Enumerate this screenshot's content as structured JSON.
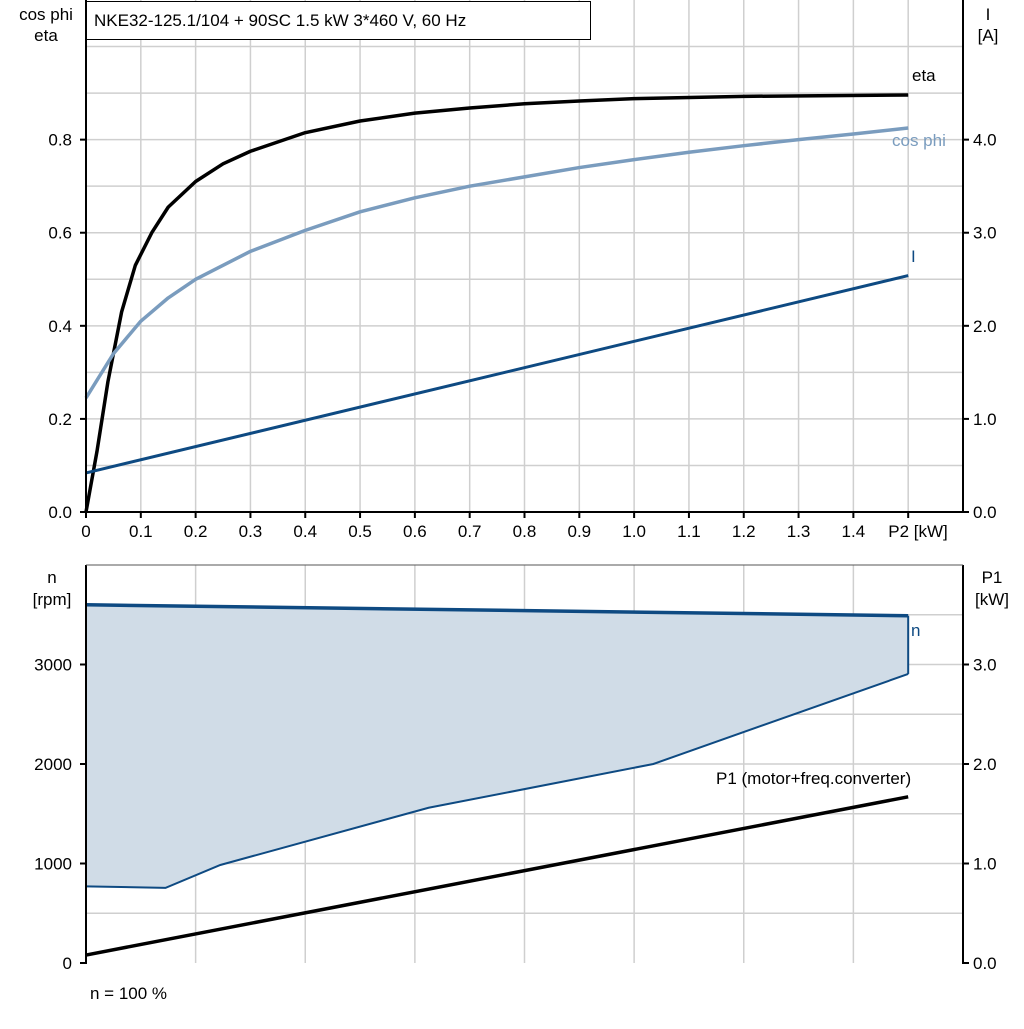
{
  "title": "NKE32-125.1/104 + 90SC   1.5 kW   3*460 V, 60 Hz",
  "footer": "n = 100 %",
  "colors": {
    "eta": "#000000",
    "cos_phi": "#7a9cbe",
    "I": "#0e4a82",
    "n": "#0e4a82",
    "n_fill": "#d0dce7",
    "P1": "#000000",
    "grid": "#cfcfcf"
  },
  "chart_data": [
    {
      "type": "line",
      "xlabel": "P2 [kW]",
      "x_ticks": [
        "0",
        "0.1",
        "0.2",
        "0.3",
        "0.4",
        "0.5",
        "0.6",
        "0.7",
        "0.8",
        "0.9",
        "1.0",
        "1.1",
        "1.2",
        "1.3",
        "1.4"
      ],
      "xlim": [
        0,
        1.6
      ],
      "ylabel_left": [
        "cos phi",
        "eta"
      ],
      "ylim_left": [
        0,
        1.1
      ],
      "y_ticks_left": [
        "0.0",
        "0.2",
        "0.4",
        "0.6",
        "0.8"
      ],
      "ylabel_right": [
        "I",
        "[A]"
      ],
      "ylim_right": [
        0,
        5.5
      ],
      "y_ticks_right": [
        "0.0",
        "1.0",
        "2.0",
        "3.0",
        "4.0"
      ],
      "grid": true,
      "series": [
        {
          "name": "eta",
          "axis": "left",
          "x": [
            0,
            0.02,
            0.04,
            0.065,
            0.09,
            0.12,
            0.15,
            0.2,
            0.25,
            0.3,
            0.4,
            0.5,
            0.6,
            0.7,
            0.8,
            0.9,
            1.0,
            1.2,
            1.5
          ],
          "y": [
            0,
            0.13,
            0.28,
            0.43,
            0.53,
            0.6,
            0.655,
            0.71,
            0.748,
            0.775,
            0.815,
            0.84,
            0.857,
            0.868,
            0.877,
            0.883,
            0.888,
            0.893,
            0.896
          ]
        },
        {
          "name": "cos phi",
          "axis": "left",
          "x": [
            0,
            0.05,
            0.1,
            0.15,
            0.2,
            0.3,
            0.4,
            0.5,
            0.6,
            0.7,
            0.8,
            0.9,
            1.0,
            1.1,
            1.2,
            1.3,
            1.4,
            1.5
          ],
          "y": [
            0.245,
            0.34,
            0.41,
            0.46,
            0.5,
            0.56,
            0.605,
            0.645,
            0.675,
            0.7,
            0.72,
            0.74,
            0.757,
            0.773,
            0.787,
            0.8,
            0.812,
            0.825
          ]
        },
        {
          "name": "I",
          "axis": "right",
          "x": [
            0,
            1.5
          ],
          "y": [
            0.42,
            2.54
          ]
        }
      ]
    },
    {
      "type": "area",
      "x_footer": "n = 100 %",
      "xlim": [
        0,
        1.6
      ],
      "ylabel_left": [
        "n",
        "[rpm]"
      ],
      "ylim_left": [
        0,
        4000
      ],
      "y_ticks_left": [
        "0",
        "1000",
        "2000",
        "3000"
      ],
      "ylabel_right": [
        "P1",
        "[kW]"
      ],
      "ylim_right": [
        0,
        4.0
      ],
      "y_ticks_right": [
        "0.0",
        "1.0",
        "2.0",
        "3.0"
      ],
      "grid": true,
      "series": [
        {
          "name": "n",
          "axis": "left",
          "x": [
            0,
            1.5
          ],
          "y": [
            3600,
            3490
          ],
          "lower_x": [
            0,
            0.145,
            0.245,
            0.625,
            1.035,
            1.5
          ],
          "lower_y": [
            770,
            755,
            985,
            1560,
            2000,
            2905
          ]
        },
        {
          "name": "P1 (motor+freq.converter)",
          "axis": "right",
          "x": [
            0,
            1.5
          ],
          "y": [
            0.08,
            1.67
          ]
        }
      ]
    }
  ]
}
